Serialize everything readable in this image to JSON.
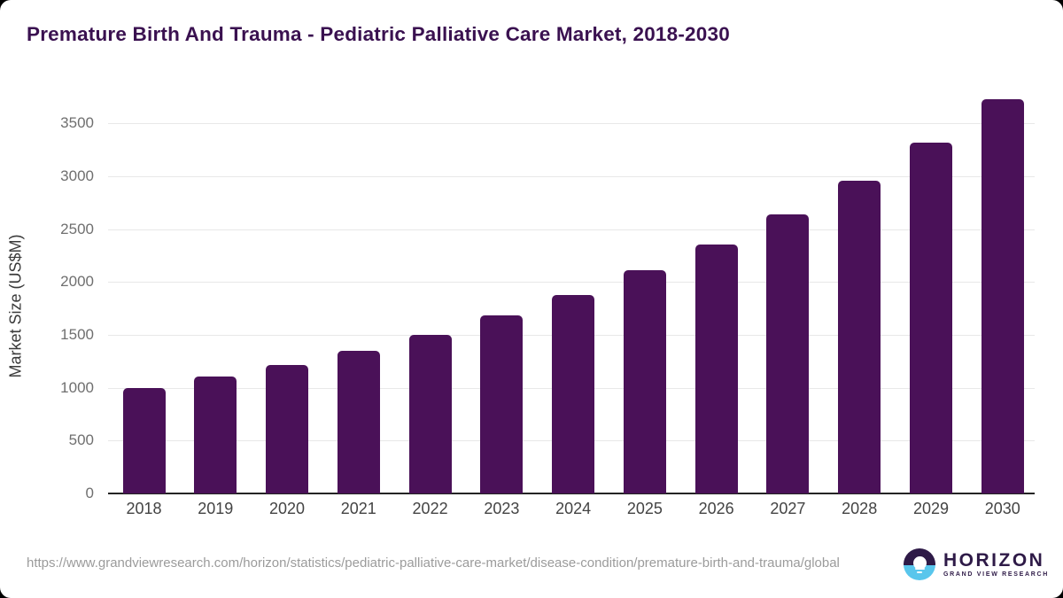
{
  "title": "Premature Birth And Trauma - Pediatric Palliative Care Market, 2018-2030",
  "source": {
    "url_text": "https://www.grandviewresearch.com/horizon/statistics/pediatric-palliative-care-market/disease-condition/premature-birth-and-trauma/global"
  },
  "logo": {
    "brand": "HORIZON",
    "subtext": "GRAND VIEW RESEARCH",
    "icon": "horizon-sun-over-water-icon",
    "purple": "#2E1A47",
    "blue": "#59C6EC"
  },
  "colors": {
    "bar": "#4A1158",
    "title_text": "#3A1150",
    "gridline": "#E8E8E8",
    "axis_line": "#242424",
    "y_tick_text": "#6F6F6F",
    "x_tick_text": "#434343",
    "axis_label_text": "#3A3A3A",
    "source_text": "#9B9B9B",
    "card_background": "#FFFFFF",
    "page_background": "#000000"
  },
  "chart_data": {
    "type": "bar",
    "title": "Premature Birth And Trauma - Pediatric Palliative Care Market, 2018-2030",
    "categories": [
      "2018",
      "2019",
      "2020",
      "2021",
      "2022",
      "2023",
      "2024",
      "2025",
      "2026",
      "2027",
      "2028",
      "2029",
      "2030"
    ],
    "values": [
      1000,
      1110,
      1215,
      1350,
      1500,
      1680,
      1880,
      2110,
      2355,
      2640,
      2960,
      3320,
      3725
    ],
    "xlabel": "",
    "ylabel": "Market Size (US$M)",
    "ylim": [
      0,
      3750
    ],
    "yticks": [
      0,
      500,
      1000,
      1500,
      2000,
      2500,
      3000,
      3500
    ],
    "grid": true,
    "legend_position": "none",
    "bar_color": "#4A1158"
  }
}
